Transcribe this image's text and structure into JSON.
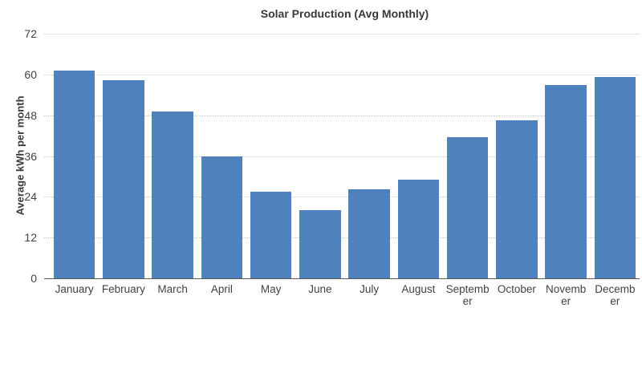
{
  "colors": {
    "background": "#ffffff",
    "bar": "#4f81bc",
    "title_text": "#383838",
    "tick_text": "#424242",
    "gridline": "#c8c8c8",
    "axis_line": "#5a5a5a"
  },
  "chart_data": {
    "type": "bar",
    "title": "Solar Production (Avg Monthly)",
    "xlabel": "",
    "ylabel": "Average kWh per month",
    "categories": [
      "January",
      "February",
      "March",
      "April",
      "May",
      "June",
      "July",
      "August",
      "September",
      "October",
      "November",
      "December"
    ],
    "label_lines": [
      [
        "January"
      ],
      [
        "February"
      ],
      [
        "March"
      ],
      [
        "April"
      ],
      [
        "May"
      ],
      [
        "June"
      ],
      [
        "July"
      ],
      [
        "August"
      ],
      [
        "Septemb",
        "er"
      ],
      [
        "October"
      ],
      [
        "Novemb",
        "er"
      ],
      [
        "Decemb",
        "er"
      ]
    ],
    "values": [
      61.2,
      58.3,
      49.0,
      36.0,
      25.4,
      20.0,
      26.3,
      29.1,
      41.5,
      46.4,
      56.8,
      59.3
    ],
    "ylim": [
      0,
      72
    ],
    "yticks": [
      0,
      12,
      24,
      36,
      48,
      60,
      72
    ],
    "grid": "horizontal-dotted",
    "legend": "none"
  }
}
